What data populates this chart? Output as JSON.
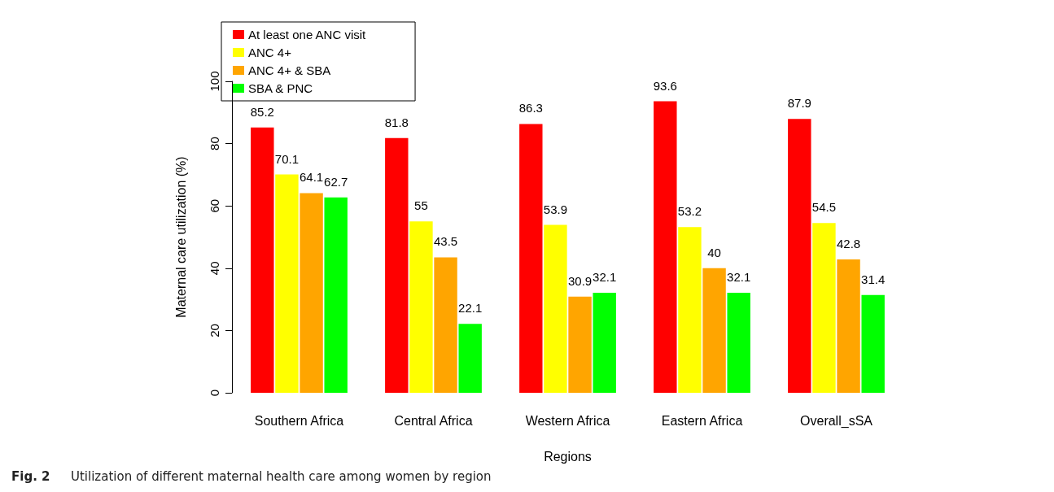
{
  "chart_data": {
    "type": "bar",
    "xlabel": "Regions",
    "ylabel": "Maternal care utilization (%)",
    "categories": [
      "Southern Africa",
      "Central Africa",
      "Western Africa",
      "Eastern Africa",
      "Overall_sSA"
    ],
    "series": [
      {
        "name": "At least one ANC visit",
        "color": "#ff0000",
        "values": [
          85.2,
          81.8,
          86.3,
          93.6,
          87.9
        ]
      },
      {
        "name": "ANC 4+",
        "color": "#ffff00",
        "values": [
          70.1,
          55,
          53.9,
          53.2,
          54.5
        ]
      },
      {
        "name": "ANC 4+ & SBA",
        "color": "#ffa500",
        "values": [
          64.1,
          43.5,
          30.9,
          40,
          42.8
        ]
      },
      {
        "name": "SBA & PNC",
        "color": "#00ff00",
        "values": [
          62.7,
          22.1,
          32.1,
          32.1,
          31.4
        ]
      }
    ],
    "ylim": [
      0,
      100
    ],
    "yticks": [
      0,
      20,
      40,
      60,
      80,
      100
    ],
    "grid": false,
    "legend": "top left",
    "data_labels": true,
    "annotations": [
      "Fig. 2",
      "Utilization of different maternal health care among women by region"
    ]
  }
}
